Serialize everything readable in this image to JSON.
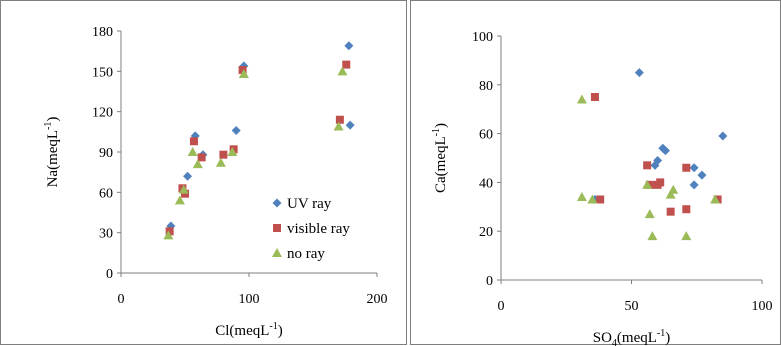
{
  "colors": {
    "uv": "#4f81bd",
    "visible": "#c0504d",
    "none": "#9bbb59",
    "axis": "#7f7f7f"
  },
  "legend": {
    "uv": "UV ray",
    "visible": "visible ray",
    "none": "no ray"
  },
  "chart_data": [
    {
      "type": "scatter",
      "xlabel": "Cl(meqL-1)",
      "ylabel": "Na(meqL-1)",
      "xlabel_parts": {
        "main": "Cl(meqL",
        "sup": "-1",
        "close": ")"
      },
      "ylabel_parts": {
        "main": "Na(meqL",
        "sup": "-1",
        "close": ")"
      },
      "xlim": [
        0,
        200
      ],
      "ylim": [
        0,
        180
      ],
      "xticks": [
        "0",
        "100",
        "200"
      ],
      "yticks": [
        "0",
        "30",
        "60",
        "90",
        "120",
        "150",
        "180"
      ],
      "legend_position": "bottom-right",
      "grid": false,
      "series": [
        {
          "name": "UV ray",
          "marker": "diamond",
          "x": [
            39,
            52,
            58,
            64,
            90,
            96,
            178,
            179
          ],
          "y": [
            35,
            72,
            102,
            88,
            106,
            154,
            169,
            110
          ]
        },
        {
          "name": "visible ray",
          "marker": "square",
          "x": [
            38,
            48,
            50,
            57,
            63,
            80,
            88,
            95,
            171,
            176
          ],
          "y": [
            31,
            63,
            59,
            98,
            86,
            88,
            92,
            151,
            114,
            155
          ]
        },
        {
          "name": "no ray",
          "marker": "triangle",
          "x": [
            37,
            46,
            49,
            56,
            60,
            78,
            87,
            96,
            170,
            173
          ],
          "y": [
            28,
            54,
            62,
            90,
            81,
            82,
            90,
            148,
            109,
            150
          ]
        }
      ]
    },
    {
      "type": "scatter",
      "xlabel": "SO4(meqL-1)",
      "ylabel": "Ca(meqL-1)",
      "xlabel_parts": {
        "main": "SO",
        "sub": "4",
        "main2": "(meqL",
        "sup": "-1",
        "close": ")"
      },
      "ylabel_parts": {
        "main": "Ca(meqL",
        "sup": "-1",
        "close": ")"
      },
      "xlim": [
        0,
        100
      ],
      "ylim": [
        0,
        100
      ],
      "xticks": [
        "0",
        "50",
        "100"
      ],
      "yticks": [
        "0",
        "20",
        "40",
        "60",
        "80",
        "100"
      ],
      "grid": false,
      "series": [
        {
          "name": "UV ray",
          "marker": "diamond",
          "x": [
            36,
            53,
            59,
            60,
            62,
            63,
            74,
            74,
            77,
            85
          ],
          "y": [
            33,
            85,
            47,
            49,
            54,
            53,
            46,
            39,
            43,
            59
          ]
        },
        {
          "name": "visible ray",
          "marker": "square",
          "x": [
            36,
            38,
            56,
            57,
            60,
            61,
            65,
            71,
            71,
            83
          ],
          "y": [
            75,
            33,
            47,
            39,
            39,
            40,
            28,
            46,
            29,
            33
          ]
        },
        {
          "name": "no ray",
          "marker": "triangle",
          "x": [
            31,
            31,
            35,
            56,
            57,
            58,
            65,
            66,
            71,
            82
          ],
          "y": [
            74,
            34,
            33,
            39,
            27,
            18,
            35,
            37,
            18,
            33
          ]
        }
      ]
    }
  ]
}
